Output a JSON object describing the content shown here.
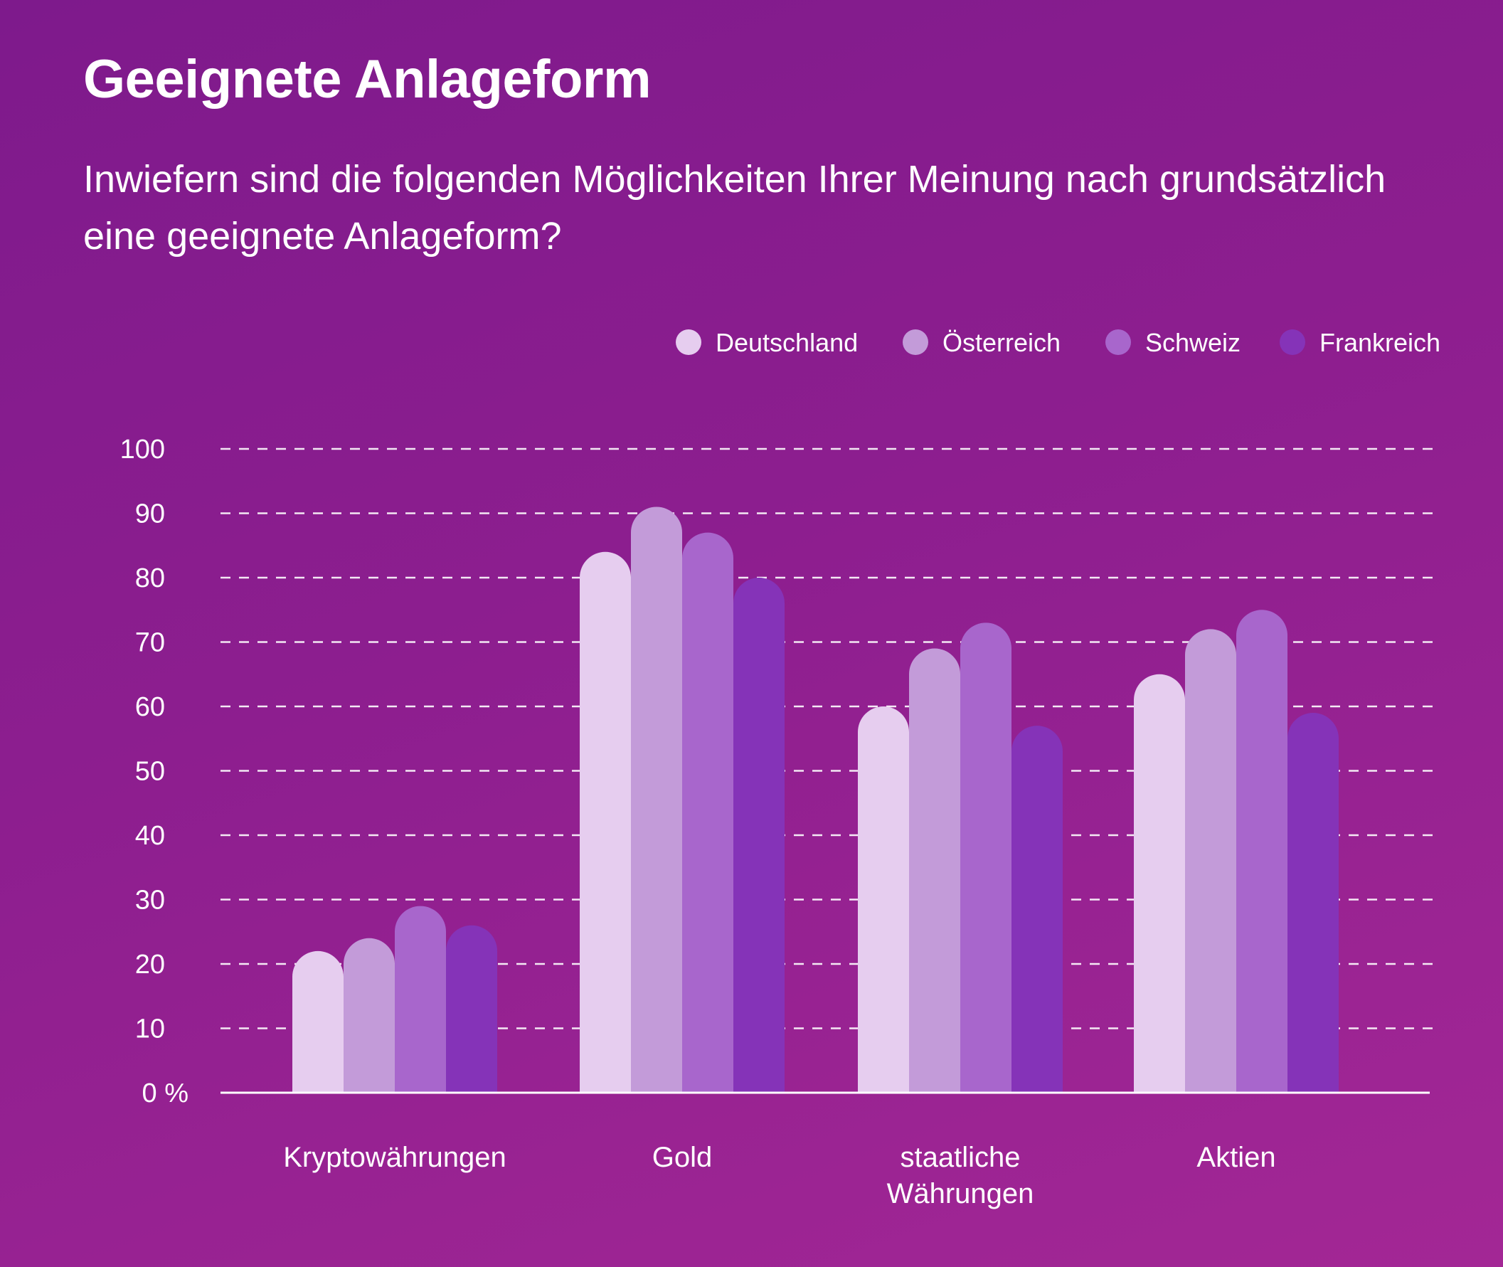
{
  "chart_data": {
    "type": "bar",
    "title": "Geeignete Anlageform",
    "subtitle": "Inwiefern sind die folgenden Möglichkeiten Ihrer Meinung nach grundsätzlich eine geeignete Anlageform?",
    "categories": [
      "Kryptowährungen",
      "Gold",
      "staatliche Währungen",
      "Aktien"
    ],
    "category_lines": [
      [
        "Kryptowährungen"
      ],
      [
        "Gold"
      ],
      [
        "staatliche",
        "Währungen"
      ],
      [
        "Aktien"
      ]
    ],
    "series": [
      {
        "name": "Deutschland",
        "color": "#e6cdef",
        "values": [
          22,
          84,
          60,
          65
        ]
      },
      {
        "name": "Österreich",
        "color": "#c39bd9",
        "values": [
          24,
          91,
          69,
          72
        ]
      },
      {
        "name": "Schweiz",
        "color": "#a866cc",
        "values": [
          29,
          87,
          73,
          75
        ]
      },
      {
        "name": "Frankreich",
        "color": "#8533b8",
        "values": [
          26,
          80,
          57,
          59
        ]
      }
    ],
    "yticks": [
      "0 %",
      "10",
      "20",
      "30",
      "40",
      "50",
      "60",
      "70",
      "80",
      "90",
      "100"
    ],
    "ylim": [
      0,
      100
    ],
    "grid": true,
    "legend": "top-right"
  }
}
